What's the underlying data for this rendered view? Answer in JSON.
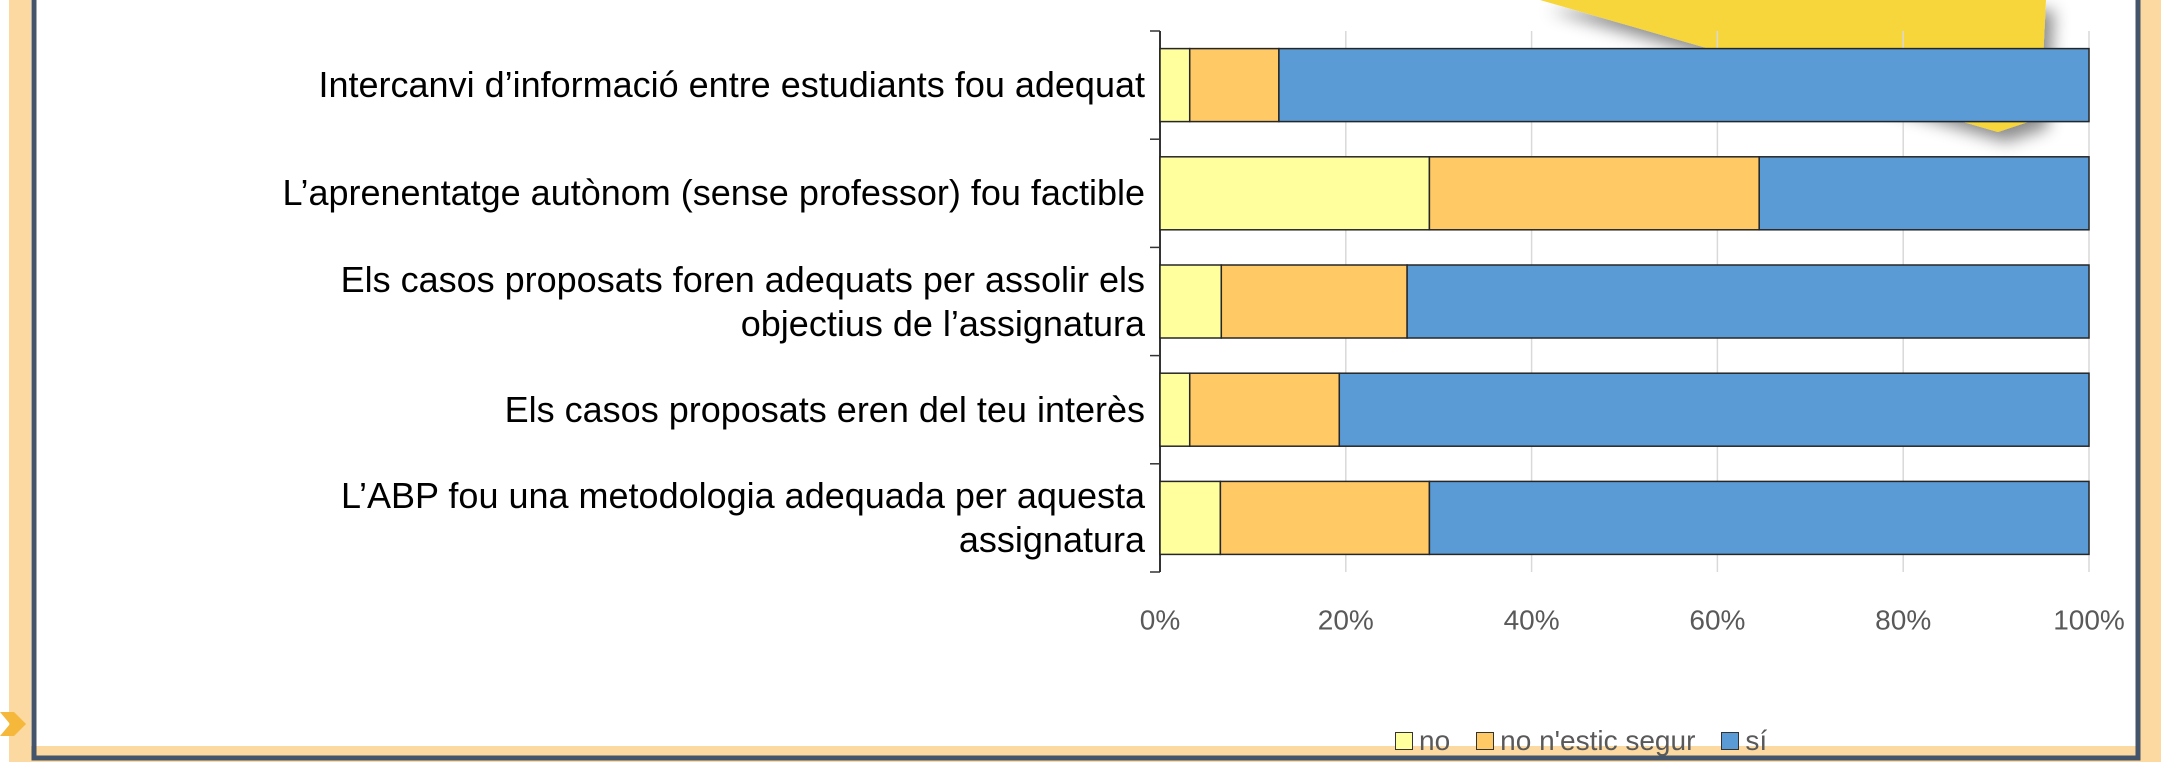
{
  "chart_data": {
    "type": "stacked_barh",
    "categories": [
      "Intercanvi d’informació entre estudiants fou adequat",
      "L’aprenentatge autònom (sense professor) fou factible",
      "Els casos proposats foren adequats per assolir els\nobjectius de l’assignatura",
      "Els casos proposats eren del teu interès",
      "L’ABP fou una metodologia adequada per aquesta\nassignatura"
    ],
    "series": [
      {
        "name": "no",
        "color": "#FFFF9E",
        "values": [
          3.2,
          29.0,
          6.6,
          3.2,
          6.5
        ]
      },
      {
        "name": "no n'estic segur",
        "color": "#FFC966",
        "values": [
          9.6,
          35.5,
          20.0,
          16.1,
          22.5
        ]
      },
      {
        "name": "sí",
        "color": "#5B9BD5",
        "values": [
          87.2,
          35.5,
          73.4,
          80.7,
          71.0
        ]
      }
    ],
    "xlim": [
      0,
      100
    ],
    "xticks": [
      {
        "value": 0,
        "label": "0%"
      },
      {
        "value": 20,
        "label": "20%"
      },
      {
        "value": 40,
        "label": "40%"
      },
      {
        "value": 60,
        "label": "60%"
      },
      {
        "value": 80,
        "label": "80%"
      },
      {
        "value": 100,
        "label": "100%"
      }
    ],
    "grid": true,
    "legend": "bottom"
  }
}
